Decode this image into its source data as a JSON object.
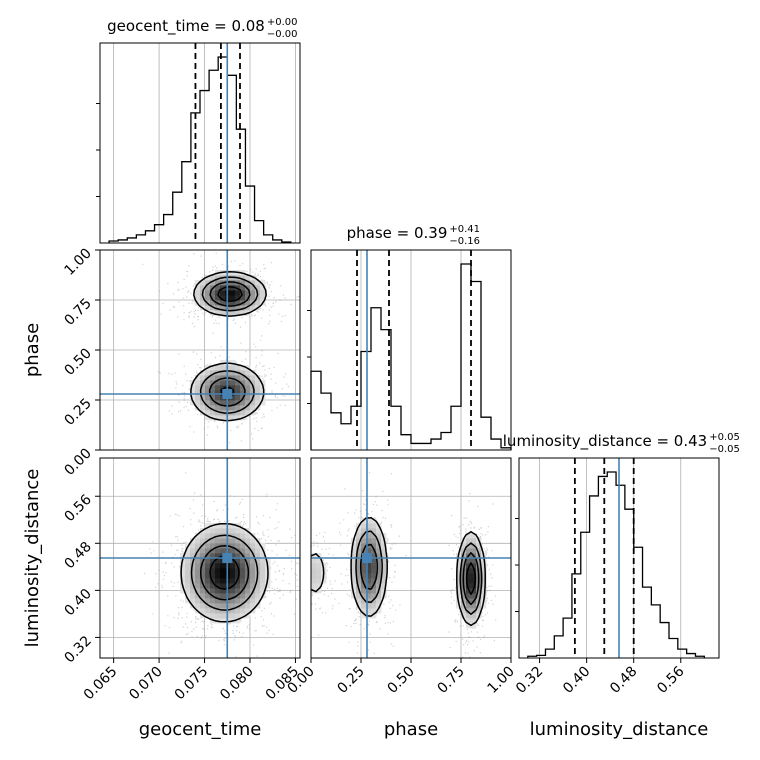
{
  "chart_data": {
    "type": "corner",
    "parameters": [
      "geocent_time",
      "phase",
      "luminosity_distance"
    ],
    "truth_color": "#4682b4",
    "truth": {
      "geocent_time": 0.0775,
      "phase": 0.28,
      "luminosity_distance": 0.455
    },
    "titles": [
      {
        "param": "geocent_time",
        "prefix": "geocent_time = 0.08",
        "plus": "+0.00",
        "minus": "−0.00"
      },
      {
        "param": "phase",
        "prefix": "phase = 0.39",
        "plus": "+0.41",
        "minus": "−0.16"
      },
      {
        "param": "luminosity_distance",
        "prefix": "luminosity_distance = 0.43",
        "plus": "+0.05",
        "minus": "−0.05"
      }
    ],
    "axes": {
      "geocent_time": {
        "range": [
          0.0635,
          0.0855
        ],
        "ticks": [
          "0.065",
          "0.070",
          "0.075",
          "0.080",
          "0.085"
        ],
        "tick_values": [
          0.065,
          0.07,
          0.075,
          0.08,
          0.085
        ]
      },
      "phase": {
        "range": [
          0.0,
          1.0
        ],
        "ticks": [
          "0.00",
          "0.25",
          "0.50",
          "0.75",
          "1.00"
        ],
        "tick_values": [
          0.0,
          0.25,
          0.5,
          0.75,
          1.0
        ]
      },
      "luminosity_distance": {
        "range": [
          0.285,
          0.625
        ],
        "ticks": [
          "0.32",
          "0.40",
          "0.48",
          "0.56"
        ],
        "tick_values": [
          0.32,
          0.4,
          0.48,
          0.56
        ]
      }
    },
    "histograms": {
      "geocent_time": {
        "bin_edges": [
          0.0645,
          0.0655,
          0.0665,
          0.0675,
          0.0685,
          0.0695,
          0.0705,
          0.0715,
          0.0725,
          0.0735,
          0.0745,
          0.0755,
          0.0765,
          0.0775,
          0.0785,
          0.0795,
          0.0805,
          0.0815,
          0.0825,
          0.0835,
          0.0845
        ],
        "counts": [
          2,
          3,
          5,
          8,
          12,
          18,
          28,
          50,
          80,
          128,
          150,
          170,
          183,
          165,
          112,
          56,
          22,
          8,
          3,
          1
        ],
        "quantiles": [
          0.074,
          0.0768,
          0.0789
        ]
      },
      "phase": {
        "bin_edges": [
          0.0,
          0.05,
          0.1,
          0.15,
          0.2,
          0.25,
          0.3,
          0.35,
          0.4,
          0.45,
          0.5,
          0.55,
          0.6,
          0.65,
          0.7,
          0.75,
          0.8,
          0.85,
          0.9,
          0.95,
          1.0
        ],
        "counts": [
          36,
          26,
          17,
          12,
          20,
          45,
          65,
          55,
          20,
          7,
          3,
          3,
          5,
          8,
          20,
          85,
          77,
          15,
          5,
          1
        ],
        "quantiles": [
          0.23,
          0.39,
          0.8
        ]
      },
      "luminosity_distance": {
        "bin_edges": [
          0.3,
          0.315,
          0.33,
          0.345,
          0.36,
          0.375,
          0.39,
          0.405,
          0.42,
          0.435,
          0.45,
          0.465,
          0.48,
          0.495,
          0.51,
          0.525,
          0.54,
          0.555,
          0.57,
          0.585,
          0.6
        ],
        "counts": [
          2,
          3,
          10,
          25,
          45,
          95,
          142,
          183,
          205,
          210,
          195,
          168,
          125,
          80,
          60,
          40,
          22,
          10,
          5,
          2
        ],
        "quantiles": [
          0.38,
          0.43,
          0.48
        ]
      }
    },
    "density_2d": [
      {
        "x": "geocent_time",
        "y": "phase",
        "modes": [
          {
            "cx": 0.0778,
            "cy": 0.78,
            "sx": 0.002,
            "sy": 0.055,
            "w": 1.0
          },
          {
            "cx": 0.0775,
            "cy": 0.29,
            "sx": 0.0021,
            "sy": 0.075,
            "w": 0.85
          }
        ]
      },
      {
        "x": "geocent_time",
        "y": "luminosity_distance",
        "modes": [
          {
            "cx": 0.0772,
            "cy": 0.43,
            "sx": 0.0024,
            "sy": 0.042,
            "w": 1.0
          }
        ]
      },
      {
        "x": "phase",
        "y": "luminosity_distance",
        "modes": [
          {
            "cx": 0.29,
            "cy": 0.44,
            "sx": 0.048,
            "sy": 0.045,
            "w": 0.8
          },
          {
            "cx": 0.8,
            "cy": 0.42,
            "sx": 0.035,
            "sy": 0.04,
            "w": 1.0
          },
          {
            "cx": 0.02,
            "cy": 0.43,
            "sx": 0.04,
            "sy": 0.03,
            "w": 0.25
          }
        ]
      }
    ]
  }
}
